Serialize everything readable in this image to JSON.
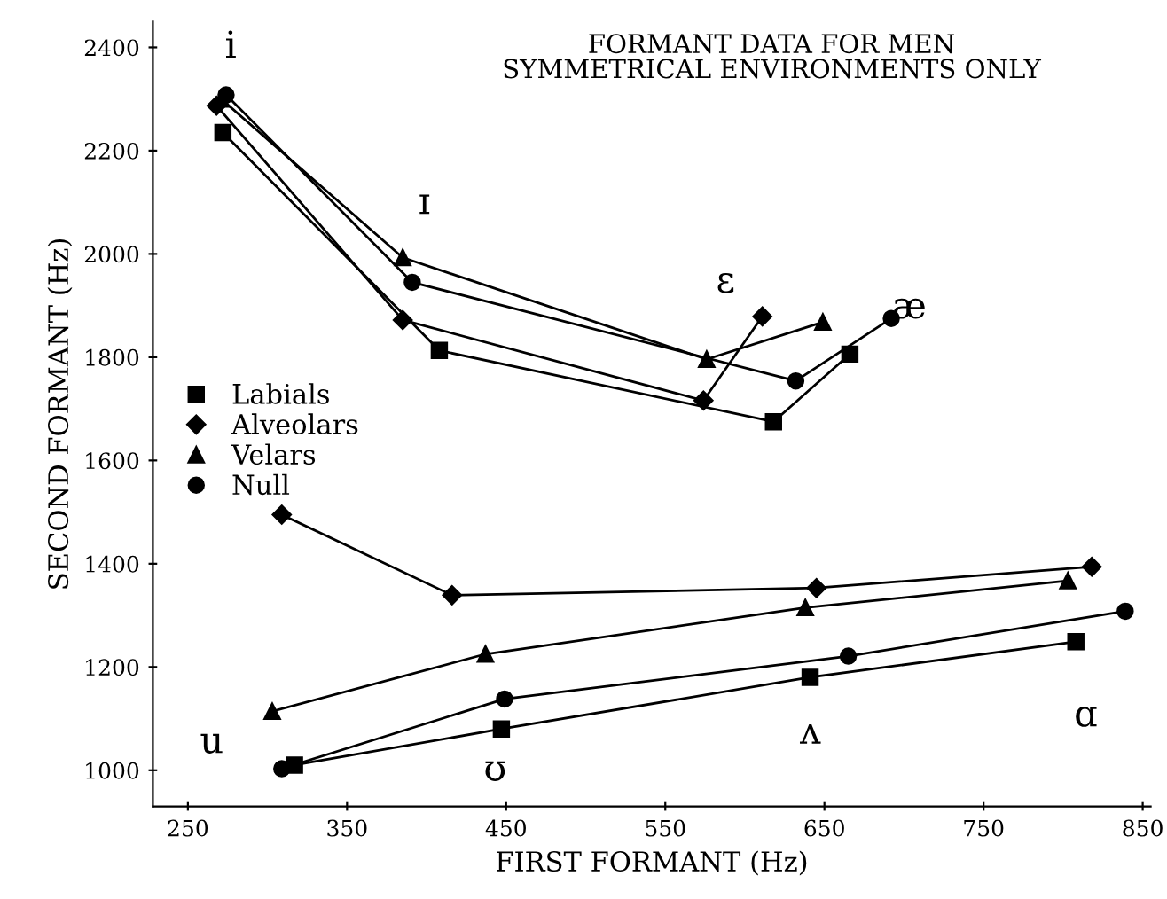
{
  "chart_data": {
    "type": "line",
    "title": "FORMANT DATA FOR MEN\nSYMMETRICAL ENVIRONMENTS ONLY",
    "xlabel": "FIRST FORMANT (Hz)",
    "ylabel": "SECOND FORMANT (Hz)",
    "xlim": [
      228,
      855
    ],
    "ylim": [
      930,
      2450
    ],
    "xticks": [
      250,
      350,
      450,
      550,
      650,
      750,
      850
    ],
    "yticks": [
      1000,
      1200,
      1400,
      1600,
      1800,
      2000,
      2200,
      2400
    ],
    "grid": false,
    "legend": "left",
    "series": [
      {
        "name": "Labials",
        "color": "#000000",
        "marker": "square",
        "x": [
          272,
          408,
          618,
          666,
          null,
          317,
          447,
          641,
          808
        ],
        "values": [
          2235,
          1813,
          1675,
          1806,
          null,
          1010,
          1080,
          1180,
          1249
        ]
      },
      {
        "name": "Alveolars",
        "color": "#000000",
        "marker": "diamond",
        "x": [
          268,
          385,
          574,
          611,
          null,
          309,
          416,
          645,
          818
        ],
        "values": [
          2287,
          1872,
          1716,
          1879,
          null,
          1495,
          1339,
          1353,
          1394
        ]
      },
      {
        "name": "Velars",
        "color": "#000000",
        "marker": "triangle",
        "x": [
          271,
          385,
          576,
          649,
          null,
          303,
          437,
          638,
          803
        ],
        "values": [
          2300,
          1993,
          1796,
          1868,
          null,
          1114,
          1225,
          1315,
          1367
        ]
      },
      {
        "name": "Null",
        "color": "#000000",
        "marker": "circle",
        "x": [
          274,
          391,
          632,
          692,
          null,
          309,
          449,
          665,
          839
        ],
        "values": [
          2308,
          1945,
          1754,
          1875,
          null,
          1003,
          1138,
          1221,
          1308
        ]
      }
    ],
    "annotations": [
      "i",
      "ɪ",
      "ɛ",
      "æ",
      "u",
      "ʊ",
      "ʌ",
      "ɑ"
    ]
  }
}
